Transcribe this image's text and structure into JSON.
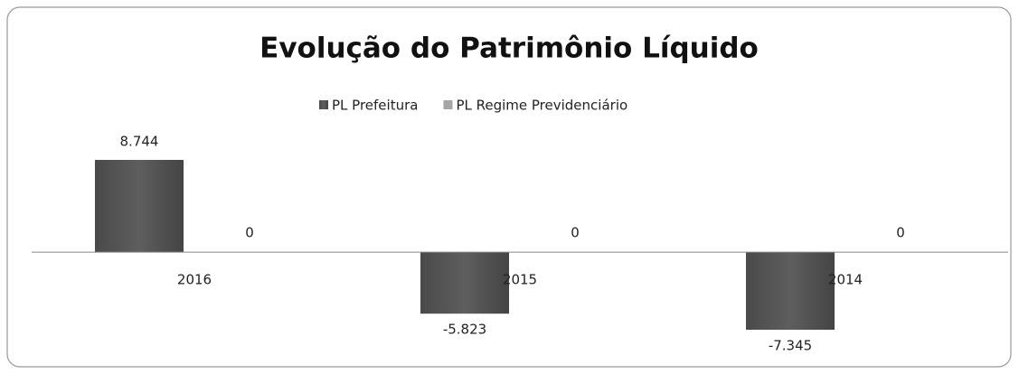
{
  "chart_data": {
    "type": "bar",
    "title": "Evolução do Patrimônio Líquido",
    "categories": [
      "2016",
      "2015",
      "2014"
    ],
    "series": [
      {
        "name": "PL Prefeitura",
        "color": "#555555",
        "values": [
          8.744,
          -5.823,
          -7.345
        ]
      },
      {
        "name": "PL Regime Previdenciário",
        "color": "#a6a6a6",
        "values": [
          0,
          0,
          0
        ]
      }
    ]
  }
}
